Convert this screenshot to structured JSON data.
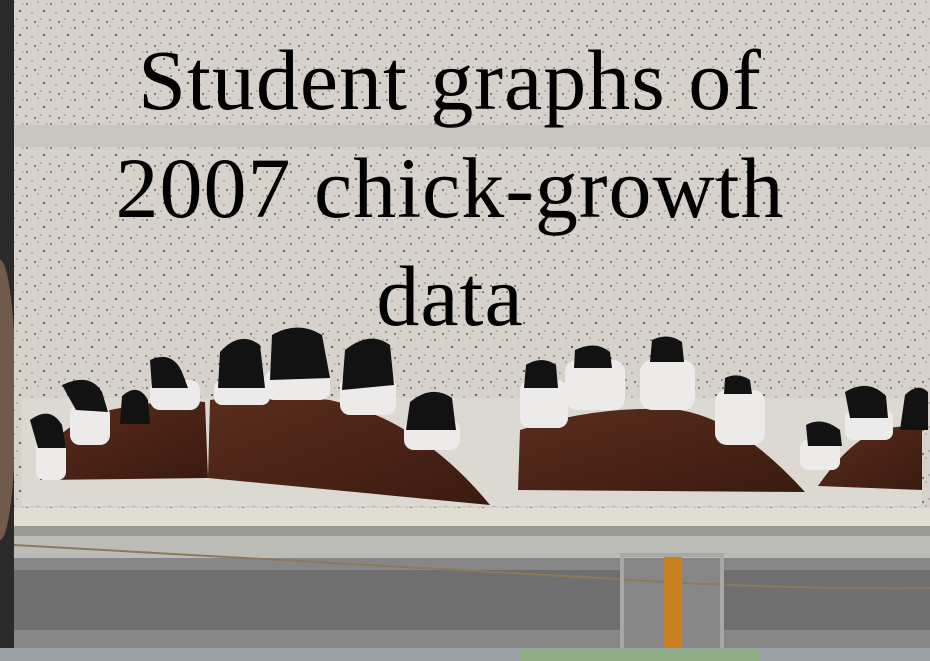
{
  "title": {
    "line1": "Student graphs of",
    "line2": "2007 chick-growth",
    "line3": "data"
  },
  "colors": {
    "ceiling_tile": "#d6d1cb",
    "ceiling_speckle": "#6e6a66",
    "hill_brown": "#4a2316",
    "chick_black": "#121212",
    "chick_white": "#ecebea",
    "trim_gray": "#bcbcb6",
    "wall_gray": "#878787",
    "pole_orange": "#c9801e"
  }
}
